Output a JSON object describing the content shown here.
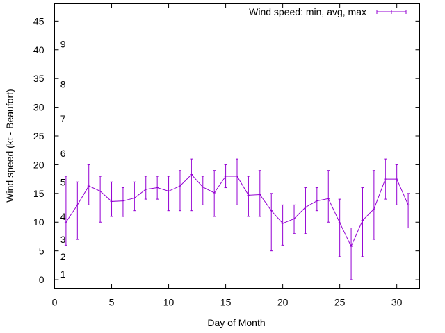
{
  "chart_data": {
    "type": "line",
    "title": "",
    "xlabel": "Day of Month",
    "ylabel": "Wind speed (kt - Beaufort)",
    "xlim": [
      0,
      32
    ],
    "ylim": [
      -1.5,
      48
    ],
    "xticks": [
      0,
      5,
      10,
      15,
      20,
      25,
      30
    ],
    "yticks": [
      0,
      5,
      10,
      15,
      20,
      25,
      30,
      35,
      40,
      45
    ],
    "grid": false,
    "legend_position": "top-right",
    "series_color": "#9400d3",
    "series": [
      {
        "name": "Wind speed: min, avg, max",
        "x": [
          1,
          2,
          3,
          4,
          5,
          6,
          7,
          8,
          9,
          10,
          11,
          12,
          13,
          14,
          15,
          16,
          17,
          18,
          19,
          20,
          21,
          22,
          23,
          24,
          25,
          26,
          27,
          28,
          29,
          30,
          31
        ],
        "y": [
          10,
          13,
          16.3,
          15.4,
          13.6,
          13.7,
          14.2,
          15.7,
          16,
          15.4,
          16.3,
          18.3,
          16.1,
          15.1,
          18,
          18,
          14.7,
          14.8,
          12,
          9.8,
          10.6,
          12.6,
          13.7,
          14.1,
          9.9,
          5.8,
          10.3,
          12.3,
          17.5,
          17.5,
          13
        ],
        "ymin": [
          6,
          7,
          13,
          10,
          11,
          11,
          12,
          14,
          14,
          12,
          12,
          12,
          13,
          11,
          16,
          13,
          11,
          11,
          5,
          6,
          8,
          8,
          12,
          10,
          4,
          0,
          4,
          7,
          14,
          13,
          9
        ],
        "ymax": [
          18,
          17,
          20,
          18,
          17,
          16,
          17,
          18,
          18,
          18,
          19,
          21,
          18,
          19,
          20,
          21,
          18,
          19,
          15,
          13,
          13,
          16,
          16,
          19,
          14,
          9,
          16,
          19,
          21,
          20,
          15
        ]
      }
    ],
    "beaufort_labels": [
      {
        "text": "1",
        "at": 1
      },
      {
        "text": "2",
        "at": 4
      },
      {
        "text": "3",
        "at": 7
      },
      {
        "text": "4",
        "at": 11
      },
      {
        "text": "5",
        "at": 17
      },
      {
        "text": "6",
        "at": 22
      },
      {
        "text": "7",
        "at": 28
      },
      {
        "text": "8",
        "at": 34
      },
      {
        "text": "9",
        "at": 41
      }
    ]
  }
}
